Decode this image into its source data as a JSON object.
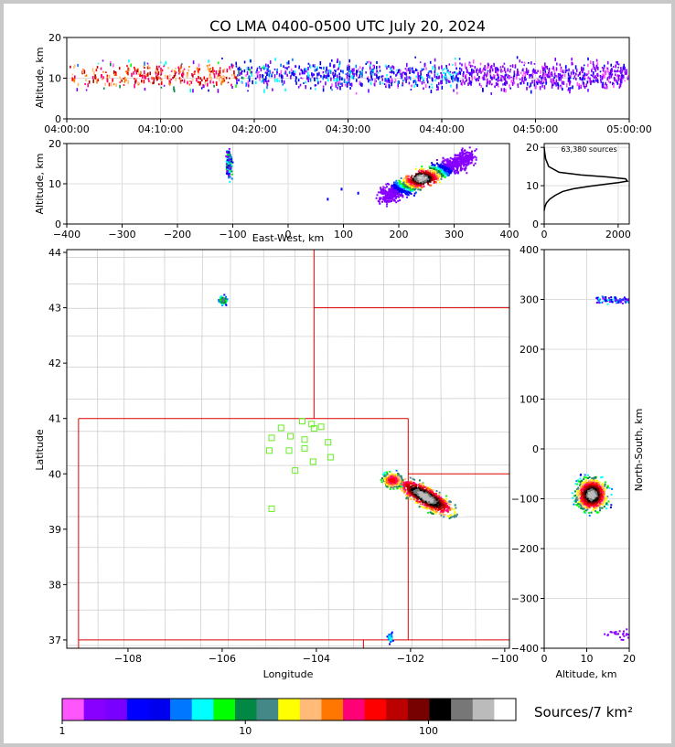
{
  "chart_data": [
    {
      "panel": "time-altitude",
      "type": "heatmap",
      "title": "CO LMA 0400-0500 UTC July 20, 2024",
      "ylabel": "Altitude, km",
      "xlim": [
        "04:00:00",
        "05:00:00"
      ],
      "ylim": [
        0,
        20
      ],
      "x_tick_labels": [
        "04:00:00",
        "04:10:00",
        "04:20:00",
        "04:30:00",
        "04:40:00",
        "04:50:00",
        "05:00:00"
      ],
      "y_tick_labels": [
        "0",
        "10",
        "20"
      ],
      "grid": true
    },
    {
      "panel": "east-west-altitude",
      "type": "heatmap",
      "xlabel": "East-West, km",
      "ylabel": "Altitude, km",
      "xlim": [
        -400,
        400
      ],
      "ylim": [
        0,
        20
      ],
      "x_tick_labels": [
        "−400",
        "−300",
        "−200",
        "−100",
        "0",
        "100",
        "200",
        "300",
        "400"
      ],
      "y_tick_labels": [
        "0",
        "10",
        "20"
      ],
      "clusters": [
        {
          "x": -110,
          "y": 15
        },
        {
          "x": 240,
          "y": 12
        }
      ],
      "grid": true
    },
    {
      "panel": "altitude-histogram",
      "type": "line",
      "annotation": "63,380 sources",
      "xlim": [
        0,
        2300
      ],
      "ylim": [
        0,
        21
      ],
      "x_tick_labels": [
        "0",
        "2000"
      ],
      "y_tick_labels": [
        "0",
        "10",
        "20"
      ],
      "x": [
        0,
        20,
        60,
        150,
        300,
        500,
        800,
        1200,
        1600,
        2000,
        2250,
        2200,
        1700,
        1000,
        400,
        120,
        40,
        10,
        0
      ],
      "y": [
        3.5,
        4.5,
        5.5,
        6.5,
        7.5,
        8.5,
        9.2,
        9.8,
        10.3,
        10.8,
        11.2,
        11.8,
        12.3,
        12.8,
        13.5,
        15,
        17,
        19,
        20
      ]
    },
    {
      "panel": "plan-view",
      "type": "heatmap",
      "xlabel": "Longitude",
      "ylabel": "Latitude",
      "xlim": [
        -109.3,
        -99.9
      ],
      "ylim": [
        36.85,
        44.05
      ],
      "x_tick_labels": [
        "−108",
        "−106",
        "−104",
        "−102",
        "−100"
      ],
      "y_tick_labels": [
        "37",
        "38",
        "39",
        "40",
        "41",
        "42",
        "43",
        "44"
      ],
      "stations": [
        [
          -104.3,
          40.95
        ],
        [
          -104.1,
          40.9
        ],
        [
          -103.9,
          40.85
        ],
        [
          -104.75,
          40.83
        ],
        [
          -104.05,
          40.82
        ],
        [
          -104.95,
          40.65
        ],
        [
          -104.55,
          40.68
        ],
        [
          -104.25,
          40.62
        ],
        [
          -103.75,
          40.57
        ],
        [
          -104.58,
          40.42
        ],
        [
          -105.0,
          40.42
        ],
        [
          -104.25,
          40.46
        ],
        [
          -103.7,
          40.3
        ],
        [
          -104.07,
          40.22
        ],
        [
          -104.45,
          40.06
        ],
        [
          -104.95,
          39.37
        ]
      ]
    },
    {
      "panel": "altitude-north-south",
      "type": "heatmap",
      "xlabel": "Altitude, km",
      "ylabel": "North-South, km",
      "xlim": [
        0,
        20
      ],
      "ylim": [
        -400,
        400
      ],
      "x_tick_labels": [
        "0",
        "10",
        "20"
      ],
      "y_tick_labels": [
        "−400",
        "−300",
        "−200",
        "−100",
        "0",
        "100",
        "200",
        "300",
        "400"
      ]
    }
  ],
  "colorbar": {
    "label": "Sources/7 km²",
    "tick_labels": [
      "1",
      "10",
      "100"
    ],
    "colors": [
      "#ff55ff",
      "#8800ff",
      "#7700ff",
      "#0000ff",
      "#0000ee",
      "#0077ff",
      "#00ffff",
      "#00ff00",
      "#008844",
      "#448888",
      "#ffff00",
      "#ffbb77",
      "#ff7700",
      "#ff0077",
      "#ff0000",
      "#bb0000",
      "#770000",
      "#000000",
      "#777777",
      "#bbbbbb",
      "#ffffff"
    ]
  }
}
